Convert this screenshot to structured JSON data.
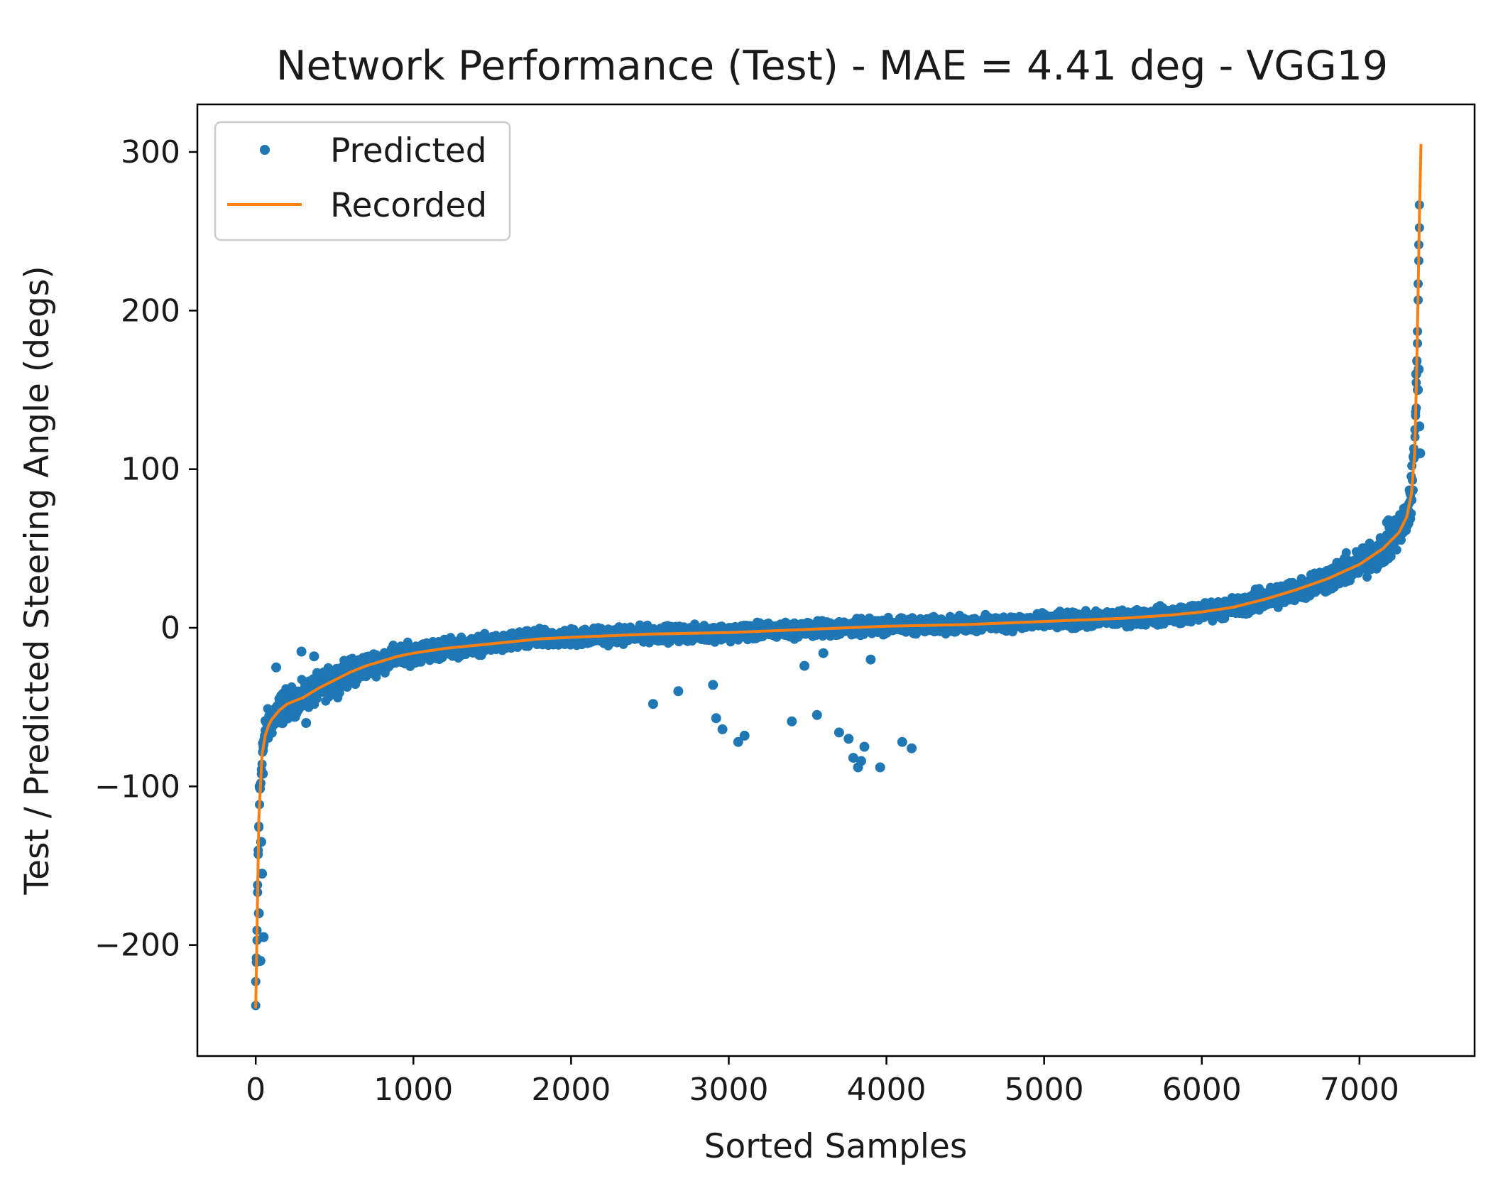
{
  "chart_data": {
    "type": "scatter",
    "title": "Network Performance (Test) - MAE = 4.41 deg - VGG19",
    "xlabel": "Sorted Samples",
    "ylabel": "Test / Predicted Steering Angle (degs)",
    "xlim": [
      -370,
      7730
    ],
    "ylim": [
      -270,
      330
    ],
    "xticks": [
      0,
      1000,
      2000,
      3000,
      4000,
      5000,
      6000,
      7000
    ],
    "xtick_labels": [
      "0",
      "1000",
      "2000",
      "3000",
      "4000",
      "5000",
      "6000",
      "7000"
    ],
    "yticks": [
      -200,
      -100,
      0,
      100,
      200,
      300
    ],
    "ytick_labels": [
      "−200",
      "−100",
      "0",
      "100",
      "200",
      "300"
    ],
    "legend": {
      "position": "top-left",
      "entries": [
        "Predicted",
        "Recorded"
      ]
    },
    "grid": false,
    "series": [
      {
        "name": "Recorded",
        "kind": "line",
        "color": "#ff7f0e",
        "x": [
          0,
          20,
          40,
          60,
          80,
          100,
          150,
          200,
          300,
          400,
          500,
          600,
          700,
          800,
          900,
          1000,
          1200,
          1400,
          1600,
          1800,
          2000,
          2500,
          3000,
          3500,
          4000,
          4500,
          5000,
          5500,
          5800,
          6000,
          6200,
          6400,
          6600,
          6800,
          7000,
          7150,
          7250,
          7300,
          7330,
          7350,
          7360,
          7370,
          7380,
          7390
        ],
        "y": [
          -240,
          -120,
          -80,
          -68,
          -62,
          -58,
          -52,
          -48,
          -44,
          -38,
          -33,
          -28,
          -24,
          -21,
          -18,
          -16,
          -13,
          -11,
          -9,
          -7,
          -6,
          -4,
          -3,
          -1,
          1,
          2,
          4,
          6,
          8,
          10,
          13,
          18,
          24,
          31,
          40,
          50,
          60,
          70,
          85,
          110,
          150,
          200,
          260,
          305
        ]
      },
      {
        "name": "Predicted",
        "kind": "scatter",
        "color": "#1f77b4",
        "band": {
          "x": [
            0,
            20,
            40,
            60,
            80,
            100,
            150,
            200,
            300,
            400,
            500,
            600,
            700,
            800,
            900,
            1000,
            1200,
            1400,
            1600,
            1800,
            2000,
            2500,
            3000,
            3500,
            4000,
            4500,
            5000,
            5500,
            5800,
            6000,
            6200,
            6400,
            6600,
            6800,
            7000,
            7150,
            7250,
            7300,
            7330,
            7350,
            7360,
            7370,
            7380
          ],
          "half_width": [
            30,
            25,
            20,
            18,
            16,
            15,
            15,
            14,
            13,
            13,
            13,
            12,
            11,
            10,
            10,
            9,
            9,
            8,
            8,
            8,
            8,
            7,
            7,
            7,
            7,
            7,
            7,
            7,
            8,
            8,
            9,
            10,
            11,
            12,
            14,
            16,
            18,
            20,
            22,
            24,
            25,
            25,
            25
          ]
        },
        "outliers": {
          "x": [
            2520,
            2680,
            2900,
            2920,
            2960,
            3060,
            3100,
            3400,
            3480,
            3560,
            3600,
            3700,
            3760,
            3790,
            3820,
            3840,
            3860,
            3900,
            3960,
            4100,
            4160,
            7360,
            7370,
            7380,
            7375,
            7385,
            30,
            50,
            20,
            40,
            35,
            25,
            45,
            320,
            130,
            370,
            290
          ],
          "y": [
            -48,
            -40,
            -36,
            -57,
            -64,
            -72,
            -68,
            -59,
            -24,
            -55,
            -16,
            -66,
            -70,
            -82,
            -88,
            -84,
            -75,
            -20,
            -88,
            -72,
            -76,
            160,
            150,
            127,
            163,
            110,
            -210,
            -195,
            -180,
            -155,
            -135,
            -100,
            -92,
            -60,
            -25,
            -18,
            -15
          ]
        }
      }
    ]
  }
}
